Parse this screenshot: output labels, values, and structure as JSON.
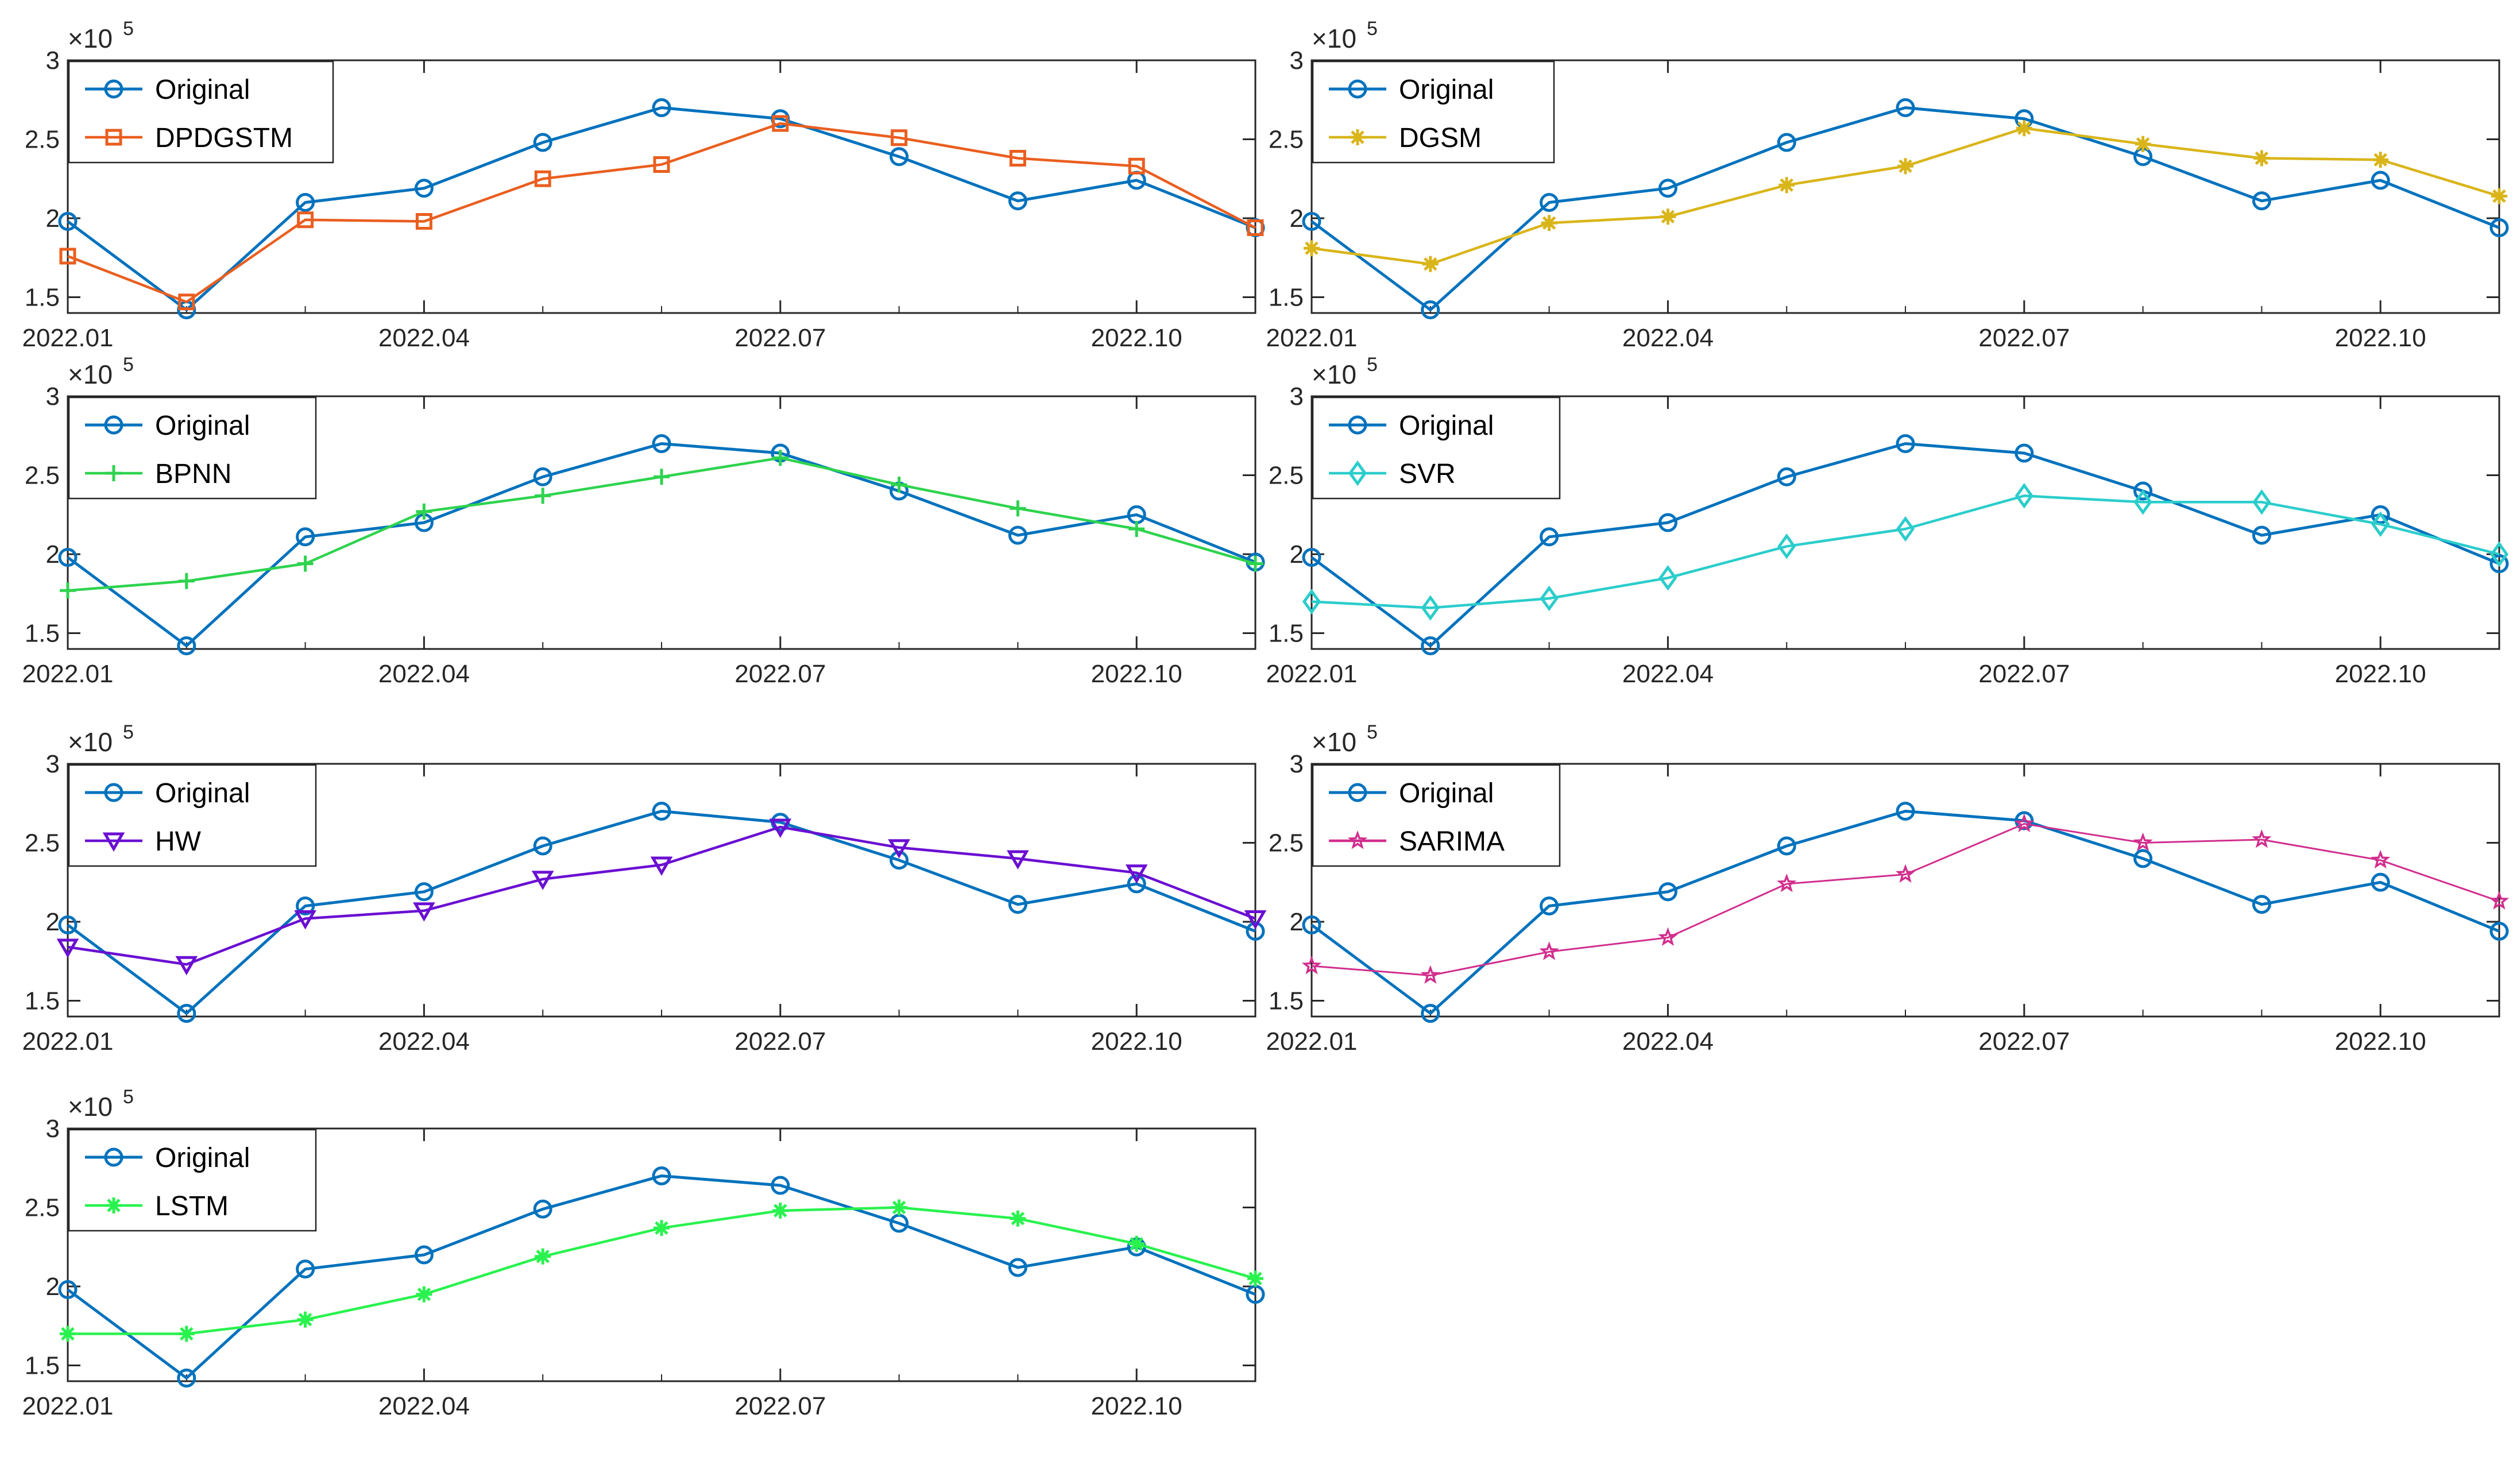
{
  "chart_data": [
    {
      "type": "line",
      "x": [
        "2022.01",
        "2022.02",
        "2022.03",
        "2022.04",
        "2022.05",
        "2022.06",
        "2022.07",
        "2022.08",
        "2022.09",
        "2022.10",
        "2022.11"
      ],
      "xticks": [
        "2022.01",
        "2022.04",
        "2022.07",
        "2022.10"
      ],
      "ylim": [
        1.4,
        3.0
      ],
      "yticks": [
        "1.5",
        "2",
        "2.5",
        "3"
      ],
      "y_exponent_base": "×10",
      "y_exponent": "5",
      "series": [
        {
          "name": "Original",
          "color": "#0072BD",
          "marker": "circle",
          "values": [
            1.98,
            1.42,
            2.1,
            2.19,
            2.48,
            2.7,
            2.63,
            2.39,
            2.11,
            2.24,
            1.94
          ]
        },
        {
          "name": "DPDGSTM",
          "color": "#EA5E1F",
          "marker": "square",
          "values": [
            1.76,
            1.47,
            1.99,
            1.98,
            2.25,
            2.34,
            2.6,
            2.51,
            2.38,
            2.33,
            1.94
          ]
        }
      ]
    },
    {
      "type": "line",
      "x": [
        "2022.01",
        "2022.02",
        "2022.03",
        "2022.04",
        "2022.05",
        "2022.06",
        "2022.07",
        "2022.08",
        "2022.09",
        "2022.10",
        "2022.11"
      ],
      "xticks": [
        "2022.01",
        "2022.04",
        "2022.07",
        "2022.10"
      ],
      "ylim": [
        1.4,
        3.0
      ],
      "yticks": [
        "1.5",
        "2",
        "2.5",
        "3"
      ],
      "y_exponent_base": "×10",
      "y_exponent": "5",
      "series": [
        {
          "name": "Original",
          "color": "#0072BD",
          "marker": "circle",
          "values": [
            1.98,
            1.42,
            2.1,
            2.19,
            2.48,
            2.7,
            2.63,
            2.39,
            2.11,
            2.24,
            1.94
          ]
        },
        {
          "name": "DGSM",
          "color": "#D9B51A",
          "marker": "asterisk",
          "values": [
            1.81,
            1.71,
            1.97,
            2.01,
            2.21,
            2.33,
            2.57,
            2.47,
            2.38,
            2.37,
            2.14
          ]
        }
      ]
    },
    {
      "type": "line",
      "x": [
        "2022.01",
        "2022.02",
        "2022.03",
        "2022.04",
        "2022.05",
        "2022.06",
        "2022.07",
        "2022.08",
        "2022.09",
        "2022.10",
        "2022.11"
      ],
      "xticks": [
        "2022.01",
        "2022.04",
        "2022.07",
        "2022.10"
      ],
      "ylim": [
        1.4,
        3.0
      ],
      "yticks": [
        "1.5",
        "2",
        "2.5",
        "3"
      ],
      "y_exponent_base": "×10",
      "y_exponent": "5",
      "series": [
        {
          "name": "Original",
          "color": "#0072BD",
          "marker": "circle",
          "values": [
            1.98,
            1.42,
            2.11,
            2.2,
            2.49,
            2.7,
            2.64,
            2.4,
            2.12,
            2.25,
            1.95
          ]
        },
        {
          "name": "BPNN",
          "color": "#2ED34E",
          "marker": "plus",
          "values": [
            1.77,
            1.83,
            1.94,
            2.27,
            2.37,
            2.49,
            2.61,
            2.44,
            2.29,
            2.16,
            1.94
          ]
        }
      ]
    },
    {
      "type": "line",
      "x": [
        "2022.01",
        "2022.02",
        "2022.03",
        "2022.04",
        "2022.05",
        "2022.06",
        "2022.07",
        "2022.08",
        "2022.09",
        "2022.10",
        "2022.11"
      ],
      "xticks": [
        "2022.01",
        "2022.04",
        "2022.07",
        "2022.10"
      ],
      "ylim": [
        1.4,
        3.0
      ],
      "yticks": [
        "1.5",
        "2",
        "2.5",
        "3"
      ],
      "y_exponent_base": "×10",
      "y_exponent": "5",
      "series": [
        {
          "name": "Original",
          "color": "#0072BD",
          "marker": "circle",
          "values": [
            1.98,
            1.42,
            2.11,
            2.2,
            2.49,
            2.7,
            2.64,
            2.4,
            2.12,
            2.25,
            1.94
          ]
        },
        {
          "name": "SVR",
          "color": "#2BCDCB",
          "marker": "diamond",
          "values": [
            1.7,
            1.66,
            1.72,
            1.85,
            2.05,
            2.16,
            2.37,
            2.33,
            2.33,
            2.19,
            2.0
          ]
        }
      ]
    },
    {
      "type": "line",
      "x": [
        "2022.01",
        "2022.02",
        "2022.03",
        "2022.04",
        "2022.05",
        "2022.06",
        "2022.07",
        "2022.08",
        "2022.09",
        "2022.10",
        "2022.11"
      ],
      "xticks": [
        "2022.01",
        "2022.04",
        "2022.07",
        "2022.10"
      ],
      "ylim": [
        1.4,
        3.0
      ],
      "yticks": [
        "1.5",
        "2",
        "2.5",
        "3"
      ],
      "y_exponent_base": "×10",
      "y_exponent": "5",
      "series": [
        {
          "name": "Original",
          "color": "#0072BD",
          "marker": "circle",
          "values": [
            1.98,
            1.42,
            2.1,
            2.19,
            2.48,
            2.7,
            2.63,
            2.39,
            2.11,
            2.24,
            1.94
          ]
        },
        {
          "name": "HW",
          "color": "#6A0FD2",
          "marker": "triangle-down",
          "values": [
            1.84,
            1.73,
            2.02,
            2.07,
            2.27,
            2.36,
            2.6,
            2.47,
            2.4,
            2.31,
            2.02
          ]
        }
      ]
    },
    {
      "type": "line",
      "x": [
        "2022.01",
        "2022.02",
        "2022.03",
        "2022.04",
        "2022.05",
        "2022.06",
        "2022.07",
        "2022.08",
        "2022.09",
        "2022.10",
        "2022.11"
      ],
      "xticks": [
        "2022.01",
        "2022.04",
        "2022.07",
        "2022.10"
      ],
      "ylim": [
        1.4,
        3.0
      ],
      "yticks": [
        "1.5",
        "2",
        "2.5",
        "3"
      ],
      "y_exponent_base": "×10",
      "y_exponent": "5",
      "series": [
        {
          "name": "Original",
          "color": "#0072BD",
          "marker": "circle",
          "values": [
            1.98,
            1.42,
            2.1,
            2.19,
            2.48,
            2.7,
            2.64,
            2.4,
            2.11,
            2.25,
            1.94
          ]
        },
        {
          "name": "SARIMA",
          "color": "#D12E8E",
          "marker": "pentagram",
          "values": [
            1.72,
            1.66,
            1.81,
            1.9,
            2.24,
            2.3,
            2.62,
            2.5,
            2.52,
            2.39,
            2.13
          ]
        }
      ]
    },
    {
      "type": "line",
      "x": [
        "2022.01",
        "2022.02",
        "2022.03",
        "2022.04",
        "2022.05",
        "2022.06",
        "2022.07",
        "2022.08",
        "2022.09",
        "2022.10",
        "2022.11"
      ],
      "xticks": [
        "2022.01",
        "2022.04",
        "2022.07",
        "2022.10"
      ],
      "ylim": [
        1.4,
        3.0
      ],
      "yticks": [
        "1.5",
        "2",
        "2.5",
        "3"
      ],
      "y_exponent_base": "×10",
      "y_exponent": "5",
      "series": [
        {
          "name": "Original",
          "color": "#0072BD",
          "marker": "circle",
          "values": [
            1.98,
            1.42,
            2.11,
            2.2,
            2.49,
            2.7,
            2.64,
            2.4,
            2.12,
            2.25,
            1.95
          ]
        },
        {
          "name": "LSTM",
          "color": "#29F24E",
          "marker": "asterisk",
          "values": [
            1.7,
            1.7,
            1.79,
            1.95,
            2.19,
            2.37,
            2.48,
            2.5,
            2.43,
            2.27,
            2.05
          ]
        }
      ]
    }
  ]
}
